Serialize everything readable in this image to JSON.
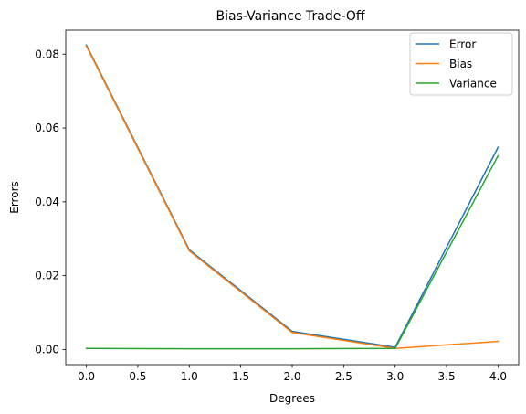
{
  "chart_data": {
    "type": "line",
    "title": "Bias-Variance Trade-Off",
    "xlabel": "Degrees",
    "ylabel": "Errors",
    "xlim": [
      -0.2,
      4.2
    ],
    "ylim": [
      -0.0041,
      0.0865
    ],
    "xticks": [
      0.0,
      0.5,
      1.0,
      1.5,
      2.0,
      2.5,
      3.0,
      3.5,
      4.0
    ],
    "xtick_labels": [
      "0.0",
      "0.5",
      "1.0",
      "1.5",
      "2.0",
      "2.5",
      "3.0",
      "3.5",
      "4.0"
    ],
    "yticks": [
      0.0,
      0.02,
      0.04,
      0.06,
      0.08
    ],
    "ytick_labels": [
      "0.00",
      "0.02",
      "0.04",
      "0.06",
      "0.08"
    ],
    "grid": false,
    "legend_position": "top-right",
    "x": [
      0,
      1,
      2,
      3,
      4
    ],
    "series": [
      {
        "name": "Error",
        "color": "#1f77b4",
        "values": [
          0.0825,
          0.027,
          0.0049,
          0.0006,
          0.0548
        ]
      },
      {
        "name": "Bias",
        "color": "#ff7f0e",
        "values": [
          0.0822,
          0.0267,
          0.0046,
          0.0003,
          0.0022
        ]
      },
      {
        "name": "Variance",
        "color": "#2ca02c",
        "values": [
          0.0003,
          0.0002,
          0.0002,
          0.0003,
          0.0525
        ]
      }
    ]
  }
}
